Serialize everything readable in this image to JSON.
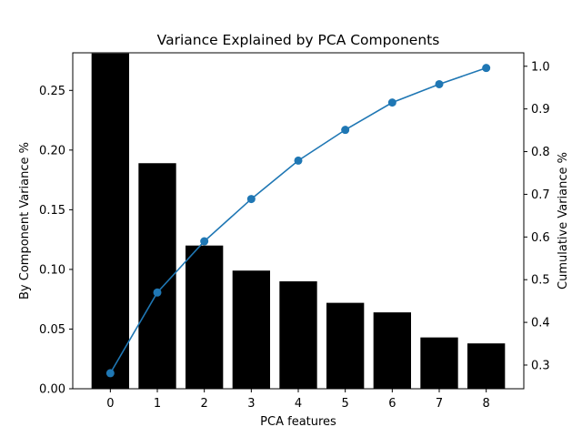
{
  "chart_data": {
    "type": "bar+line",
    "title": "Variance Explained by PCA Components",
    "xlabel": "PCA features",
    "ylabel_left": "By Component Variance %",
    "ylabel_right": "Cumulative Variance %",
    "categories": [
      "0",
      "1",
      "2",
      "3",
      "4",
      "5",
      "6",
      "7",
      "8"
    ],
    "x": [
      0,
      1,
      2,
      3,
      4,
      5,
      6,
      7,
      8
    ],
    "bars": {
      "values": [
        0.281,
        0.189,
        0.12,
        0.099,
        0.09,
        0.072,
        0.064,
        0.043,
        0.038
      ],
      "color": "#000000"
    },
    "line": {
      "values": [
        0.281,
        0.47,
        0.59,
        0.689,
        0.779,
        0.851,
        0.915,
        0.958,
        0.996
      ],
      "color": "#1f77b4",
      "marker": "circle"
    },
    "xlim": [
      -0.8,
      8.8
    ],
    "ylim_left": [
      0,
      0.2815
    ],
    "ylim_right": [
      0.2445,
      1.0315
    ],
    "yticks_left": [
      "0.00",
      "0.05",
      "0.10",
      "0.15",
      "0.20",
      "0.25"
    ],
    "yticks_left_values": [
      0,
      0.05,
      0.1,
      0.15,
      0.2,
      0.25
    ],
    "yticks_right": [
      "0.3",
      "0.4",
      "0.5",
      "0.6",
      "0.7",
      "0.8",
      "0.9",
      "1.0"
    ],
    "yticks_right_values": [
      0.3,
      0.4,
      0.5,
      0.6,
      0.7,
      0.8,
      0.9,
      1.0
    ],
    "grid": false,
    "legend": "none"
  }
}
